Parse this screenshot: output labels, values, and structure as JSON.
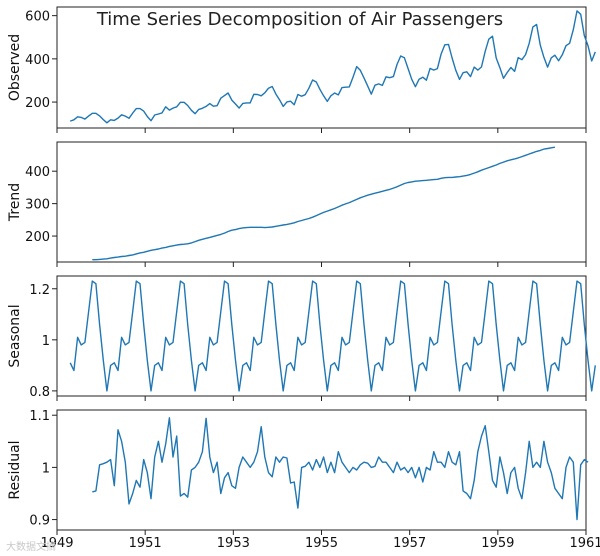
{
  "chart_data": {
    "type": "line",
    "title": "Time Series Decomposition of Air Passengers",
    "line_color": "#1f77b4",
    "x_ticks": [
      1949,
      1951,
      1953,
      1955,
      1957,
      1959,
      1961
    ],
    "xlim": [
      1949,
      1961
    ],
    "x_start": 1949.3,
    "x_step": 0.0833,
    "panels": [
      {
        "name": "observed",
        "ylabel": "Observed",
        "ylim": [
          80,
          640
        ],
        "y_ticks": [
          200,
          400,
          600
        ],
        "values": [
          112,
          118,
          132,
          129,
          121,
          135,
          148,
          148,
          136,
          119,
          104,
          118,
          115,
          126,
          141,
          135,
          125,
          149,
          170,
          170,
          158,
          133,
          114,
          140,
          145,
          150,
          178,
          163,
          172,
          178,
          199,
          199,
          184,
          162,
          146,
          166,
          171,
          180,
          193,
          181,
          183,
          218,
          230,
          242,
          209,
          191,
          172,
          194,
          196,
          196,
          236,
          235,
          229,
          243,
          264,
          272,
          237,
          211,
          180,
          201,
          204,
          188,
          235,
          227,
          234,
          264,
          302,
          293,
          259,
          229,
          203,
          229,
          242,
          233,
          267,
          269,
          270,
          315,
          364,
          347,
          312,
          274,
          237,
          278,
          284,
          277,
          317,
          313,
          318,
          374,
          413,
          405,
          355,
          306,
          271,
          306,
          315,
          301,
          356,
          348,
          355,
          422,
          465,
          467,
          404,
          347,
          305,
          336,
          340,
          318,
          362,
          348,
          363,
          435,
          491,
          505,
          404,
          359,
          310,
          337,
          360,
          342,
          406,
          396,
          420,
          472,
          548,
          559,
          463,
          407,
          362,
          405,
          417,
          391,
          419,
          461,
          472,
          535,
          622,
          606,
          508,
          461,
          390,
          432
        ]
      },
      {
        "name": "trend",
        "ylabel": "Trend",
        "ylim": [
          120,
          490
        ],
        "y_ticks": [
          200,
          300,
          400
        ],
        "offset": 6,
        "values": [
          127,
          127,
          128,
          129,
          130,
          132,
          134,
          135,
          137,
          138,
          140,
          142,
          145,
          148,
          150,
          153,
          156,
          158,
          160,
          163,
          165,
          168,
          170,
          172,
          174,
          175,
          176,
          179,
          183,
          187,
          190,
          193,
          196,
          199,
          202,
          205,
          209,
          214,
          218,
          220,
          223,
          225,
          226,
          227,
          227,
          227,
          227,
          226,
          227,
          228,
          230,
          232,
          234,
          236,
          238,
          241,
          245,
          248,
          251,
          254,
          258,
          263,
          268,
          273,
          277,
          281,
          285,
          290,
          295,
          299,
          303,
          308,
          313,
          318,
          322,
          326,
          329,
          332,
          335,
          338,
          341,
          344,
          348,
          352,
          357,
          362,
          365,
          367,
          369,
          370,
          371,
          372,
          373,
          374,
          375,
          378,
          380,
          381,
          381,
          382,
          383,
          385,
          387,
          390,
          394,
          398,
          403,
          407,
          411,
          415,
          419,
          424,
          428,
          432,
          435,
          438,
          441,
          445,
          449,
          453,
          457,
          461,
          464,
          468,
          470,
          472,
          474
        ]
      },
      {
        "name": "seasonal",
        "ylabel": "Seasonal",
        "ylim": [
          0.78,
          1.25
        ],
        "y_ticks": [
          0.8,
          1.0,
          1.2
        ],
        "values": [
          0.91,
          0.88,
          1.01,
          0.98,
          0.99,
          1.11,
          1.23,
          1.22,
          1.06,
          0.92,
          0.8,
          0.9,
          0.91,
          0.88,
          1.01,
          0.98,
          0.99,
          1.11,
          1.23,
          1.22,
          1.06,
          0.92,
          0.8,
          0.9,
          0.91,
          0.88,
          1.01,
          0.98,
          0.99,
          1.11,
          1.23,
          1.22,
          1.06,
          0.92,
          0.8,
          0.9,
          0.91,
          0.88,
          1.01,
          0.98,
          0.99,
          1.11,
          1.23,
          1.22,
          1.06,
          0.92,
          0.8,
          0.9,
          0.91,
          0.88,
          1.01,
          0.98,
          0.99,
          1.11,
          1.23,
          1.22,
          1.06,
          0.92,
          0.8,
          0.9,
          0.91,
          0.88,
          1.01,
          0.98,
          0.99,
          1.11,
          1.23,
          1.22,
          1.06,
          0.92,
          0.8,
          0.9,
          0.91,
          0.88,
          1.01,
          0.98,
          0.99,
          1.11,
          1.23,
          1.22,
          1.06,
          0.92,
          0.8,
          0.9,
          0.91,
          0.88,
          1.01,
          0.98,
          0.99,
          1.11,
          1.23,
          1.22,
          1.06,
          0.92,
          0.8,
          0.9,
          0.91,
          0.88,
          1.01,
          0.98,
          0.99,
          1.11,
          1.23,
          1.22,
          1.06,
          0.92,
          0.8,
          0.9,
          0.91,
          0.88,
          1.01,
          0.98,
          0.99,
          1.11,
          1.23,
          1.22,
          1.06,
          0.92,
          0.8,
          0.9,
          0.91,
          0.88,
          1.01,
          0.98,
          0.99,
          1.11,
          1.23,
          1.22,
          1.06,
          0.92,
          0.8,
          0.9,
          0.91,
          0.88,
          1.01,
          0.98,
          0.99,
          1.11,
          1.23,
          1.22,
          1.06,
          0.92,
          0.8,
          0.9
        ]
      },
      {
        "name": "residual",
        "ylabel": "Residual",
        "ylim": [
          0.88,
          1.11
        ],
        "y_ticks": [
          0.9,
          1.0,
          1.1
        ],
        "offset": 6,
        "values": [
          0.953,
          0.955,
          1.005,
          1.007,
          1.01,
          1.015,
          0.965,
          1.072,
          1.05,
          1.01,
          0.93,
          0.95,
          0.975,
          0.962,
          1.015,
          0.99,
          0.94,
          1.02,
          1.05,
          1.01,
          1.045,
          1.095,
          1.02,
          1.06,
          0.945,
          0.95,
          0.943,
          0.995,
          1.0,
          1.01,
          1.03,
          1.094,
          1.02,
          0.99,
          1.01,
          0.95,
          0.98,
          0.99,
          0.965,
          0.96,
          1.0,
          1.02,
          1.01,
          1.0,
          1.01,
          1.03,
          1.078,
          1.02,
          0.99,
          0.982,
          1.02,
          1.01,
          1.02,
          1.018,
          0.97,
          0.972,
          0.922,
          1.0,
          1.002,
          1.01,
          0.995,
          1.015,
          1.0,
          1.02,
          0.99,
          1.01,
          0.99,
          1.03,
          1.01,
          1.0,
          0.99,
          1.0,
          0.995,
          1.005,
          1.01,
          1.008,
          1.0,
          1.002,
          1.02,
          1.01,
          1.01,
          1.0,
          0.99,
          1.01,
          0.995,
          1.0,
          0.99,
          1.0,
          0.98,
          1.0,
          0.972,
          1.0,
          0.995,
          1.03,
          1.01,
          1.01,
          1.0,
          1.03,
          1.01,
          1.005,
          1.03,
          0.955,
          0.95,
          0.94,
          0.975,
          1.03,
          1.06,
          1.08,
          1.03,
          0.975,
          0.962,
          1.02,
          0.99,
          0.95,
          0.99,
          1.0,
          0.96,
          0.94,
          0.99,
          1.05,
          1.0,
          1.01,
          1.0,
          1.05,
          1.01,
          0.99,
          0.96,
          0.95,
          0.94,
          1.0,
          1.02,
          1.01,
          0.9,
          1.005,
          1.015,
          1.01
        ]
      }
    ]
  },
  "watermark": "大数据文摘"
}
